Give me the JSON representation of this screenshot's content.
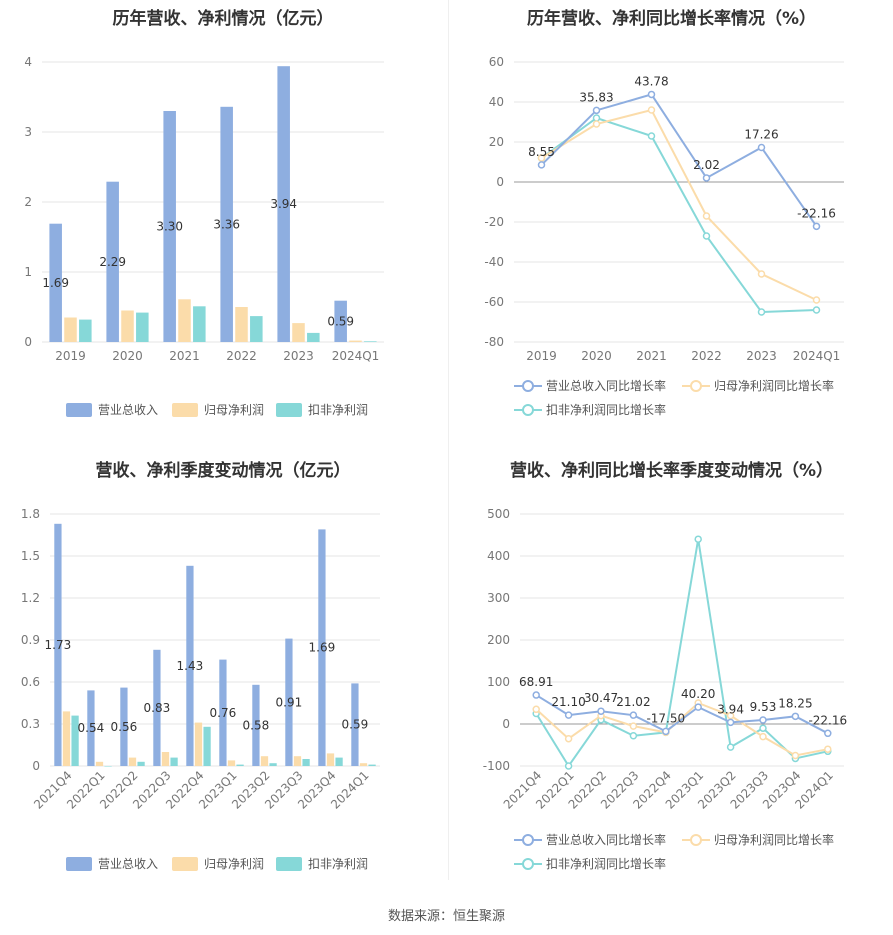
{
  "footer": {
    "source": "数据来源：恒生聚源"
  },
  "colors": {
    "revenue": "#8eaee0",
    "parent_profit": "#fbdcaa",
    "deducted_profit": "#86d8d8",
    "revenue_line": "#8eaee0",
    "parent_line": "#fbdcaa",
    "deducted_line": "#86d8d8"
  },
  "chart_data": [
    {
      "type": "bar",
      "title": "历年营收、净利情况（亿元）",
      "categories": [
        "2019",
        "2020",
        "2021",
        "2022",
        "2023",
        "2024Q1"
      ],
      "ylim": [
        0,
        4
      ],
      "yticks": [
        "0",
        "1",
        "2",
        "3",
        "4"
      ],
      "grid": true,
      "legend": "bottom",
      "series": [
        {
          "name": "营业总收入",
          "values": [
            1.69,
            2.29,
            3.3,
            3.36,
            3.94,
            0.59
          ],
          "labels": [
            "1.69",
            "2.29",
            "3.30",
            "3.36",
            "3.94",
            "0.59"
          ]
        },
        {
          "name": "归母净利润",
          "values": [
            0.35,
            0.45,
            0.61,
            0.5,
            0.27,
            0.02
          ]
        },
        {
          "name": "扣非净利润",
          "values": [
            0.32,
            0.42,
            0.51,
            0.37,
            0.13,
            0.01
          ]
        }
      ]
    },
    {
      "type": "line",
      "title": "历年营收、净利同比增长率情况（%）",
      "categories": [
        "2019",
        "2020",
        "2021",
        "2022",
        "2023",
        "2024Q1"
      ],
      "ylim": [
        -80,
        60
      ],
      "yticks": [
        "60",
        "40",
        "20",
        "0",
        "-20",
        "-40",
        "-60",
        "-80"
      ],
      "grid": true,
      "legend": "bottom",
      "series": [
        {
          "name": "营业总收入同比增长率",
          "values": [
            8.55,
            35.83,
            43.78,
            2.02,
            17.26,
            -22.16
          ],
          "labels": [
            "8.55",
            "35.83",
            "43.78",
            "2.02",
            "17.26",
            "-22.16"
          ]
        },
        {
          "name": "归母净利润同比增长率",
          "values": [
            12,
            29,
            36,
            -17,
            -46,
            -59
          ]
        },
        {
          "name": "扣非净利润同比增长率",
          "values": [
            12,
            32,
            23,
            -27,
            -65,
            -64
          ]
        }
      ]
    },
    {
      "type": "bar",
      "title": "营收、净利季度变动情况（亿元）",
      "categories": [
        "2021Q4",
        "2022Q1",
        "2022Q2",
        "2022Q3",
        "2022Q4",
        "2023Q1",
        "2023Q2",
        "2023Q3",
        "2023Q4",
        "2024Q1"
      ],
      "ylim": [
        0,
        1.8
      ],
      "yticks": [
        "0",
        "0.3",
        "0.6",
        "0.9",
        "1.2",
        "1.5",
        "1.8"
      ],
      "grid": true,
      "legend": "bottom",
      "series": [
        {
          "name": "营业总收入",
          "values": [
            1.73,
            0.54,
            0.56,
            0.83,
            1.43,
            0.76,
            0.58,
            0.91,
            1.69,
            0.59
          ],
          "labels": [
            "1.73",
            "0.54",
            "0.56",
            "0.83",
            "1.43",
            "0.76",
            "0.58",
            "0.91",
            "1.69",
            "0.59"
          ]
        },
        {
          "name": "归母净利润",
          "values": [
            0.39,
            0.03,
            0.06,
            0.1,
            0.31,
            0.04,
            0.07,
            0.07,
            0.09,
            0.02
          ]
        },
        {
          "name": "扣非净利润",
          "values": [
            0.36,
            0.0,
            0.03,
            0.06,
            0.28,
            0.01,
            0.02,
            0.05,
            0.06,
            0.01
          ]
        }
      ]
    },
    {
      "type": "line",
      "title": "营收、净利同比增长率季度变动情况（%）",
      "categories": [
        "2021Q4",
        "2022Q1",
        "2022Q2",
        "2022Q3",
        "2022Q4",
        "2023Q1",
        "2023Q2",
        "2023Q3",
        "2023Q4",
        "2024Q1"
      ],
      "ylim": [
        -100,
        500
      ],
      "yticks": [
        "500",
        "400",
        "300",
        "200",
        "100",
        "0",
        "-100"
      ],
      "grid": true,
      "legend": "bottom",
      "series": [
        {
          "name": "营业总收入同比增长率",
          "values": [
            68.91,
            21.1,
            30.47,
            21.02,
            -17.5,
            40.2,
            3.94,
            9.53,
            18.25,
            -22.16
          ],
          "labels": [
            "68.91",
            "21.10",
            "30.47",
            "21.02",
            "-17.50",
            "40.20",
            "3.94",
            "9.53",
            "18.25",
            "-22.16"
          ]
        },
        {
          "name": "归母净利润同比增长率",
          "values": [
            35,
            -35,
            20,
            -5,
            -20,
            50,
            20,
            -30,
            -75,
            -60
          ]
        },
        {
          "name": "扣非净利润同比增长率",
          "values": [
            25,
            -100,
            10,
            -28,
            -20,
            440,
            -55,
            -10,
            -82,
            -65
          ]
        }
      ]
    }
  ]
}
